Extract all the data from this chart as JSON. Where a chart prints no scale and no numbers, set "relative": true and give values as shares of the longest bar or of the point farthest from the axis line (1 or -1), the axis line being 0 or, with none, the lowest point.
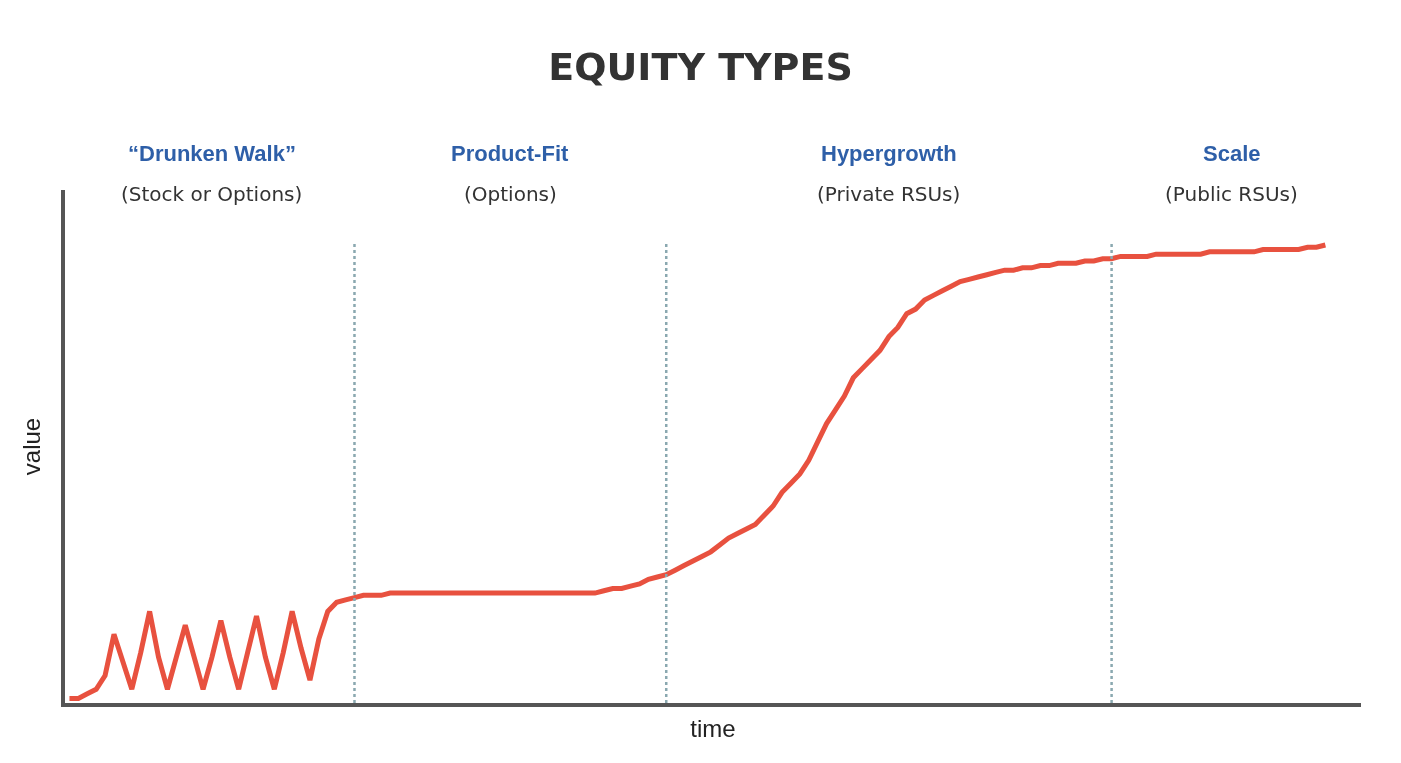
{
  "chart_data": {
    "type": "line",
    "title": "EQUITY TYPES",
    "xlabel": "time",
    "ylabel": "value",
    "relative": true,
    "categories": [
      null,
      null,
      null,
      null,
      null,
      null,
      null,
      null,
      null,
      null,
      null,
      null,
      null,
      null,
      null,
      null,
      null,
      null,
      null,
      null,
      null,
      null,
      null,
      null,
      null,
      null,
      null,
      null,
      null,
      null,
      null,
      null,
      null,
      null,
      null,
      null,
      null,
      null,
      null,
      null,
      null,
      null,
      null,
      null,
      null,
      null,
      null,
      null,
      null,
      null,
      null,
      null,
      null,
      null,
      null,
      null,
      null,
      null,
      null,
      null,
      null,
      null,
      null,
      null,
      null,
      null,
      null,
      null,
      null,
      null,
      null,
      null,
      null,
      null,
      null,
      null,
      null,
      null,
      null,
      null,
      null,
      null,
      null,
      null,
      null,
      null,
      null,
      null,
      null,
      null,
      null,
      null,
      null,
      null,
      null,
      null,
      null,
      null,
      null,
      null,
      null,
      null,
      null,
      null,
      null,
      null,
      null,
      null,
      null,
      null,
      null,
      null,
      null,
      null,
      null,
      null,
      null,
      null,
      null,
      null,
      null,
      null,
      null,
      null,
      null,
      null,
      null,
      null,
      null,
      null,
      null,
      null,
      null,
      null,
      null,
      null,
      null,
      null,
      null,
      null,
      null,
      null
    ],
    "series": [
      {
        "color": "#e8513f",
        "values": [
          0.01,
          0.01,
          0.02,
          0.03,
          0.06,
          0.15,
          0.09,
          0.03,
          0.11,
          0.2,
          0.1,
          0.03,
          0.1,
          0.17,
          0.1,
          0.03,
          0.1,
          0.18,
          0.1,
          0.03,
          0.11,
          0.19,
          0.1,
          0.03,
          0.11,
          0.2,
          0.12,
          0.05,
          0.14,
          0.2,
          0.22,
          0.225,
          0.23,
          0.235,
          0.235,
          0.235,
          0.24,
          0.24,
          0.24,
          0.24,
          0.24,
          0.24,
          0.24,
          0.24,
          0.24,
          0.24,
          0.24,
          0.24,
          0.24,
          0.24,
          0.24,
          0.24,
          0.24,
          0.24,
          0.24,
          0.24,
          0.24,
          0.24,
          0.24,
          0.24,
          0.245,
          0.25,
          0.25,
          0.255,
          0.26,
          0.27,
          0.275,
          0.28,
          0.29,
          0.3,
          0.31,
          0.32,
          0.33,
          0.345,
          0.36,
          0.37,
          0.38,
          0.39,
          0.41,
          0.43,
          0.46,
          0.48,
          0.5,
          0.53,
          0.57,
          0.61,
          0.64,
          0.67,
          0.71,
          0.73,
          0.75,
          0.77,
          0.8,
          0.82,
          0.85,
          0.86,
          0.88,
          0.89,
          0.9,
          0.91,
          0.92,
          0.925,
          0.93,
          0.935,
          0.94,
          0.945,
          0.945,
          0.95,
          0.95,
          0.955,
          0.955,
          0.96,
          0.96,
          0.96,
          0.965,
          0.965,
          0.97,
          0.97,
          0.975,
          0.975,
          0.975,
          0.975,
          0.98,
          0.98,
          0.98,
          0.98,
          0.98,
          0.98,
          0.985,
          0.985,
          0.985,
          0.985,
          0.985,
          0.985,
          0.99,
          0.99,
          0.99,
          0.99,
          0.99,
          0.995,
          0.995,
          1.0
        ]
      }
    ],
    "annotations": [
      "“Drunken Walk”",
      "(Stock or Options)",
      "Product-Fit",
      "(Options)",
      "Hypergrowth",
      "(Private RSUs)",
      "Scale",
      "(Public RSUs)"
    ],
    "marker": "none",
    "line_style": "solid"
  }
}
